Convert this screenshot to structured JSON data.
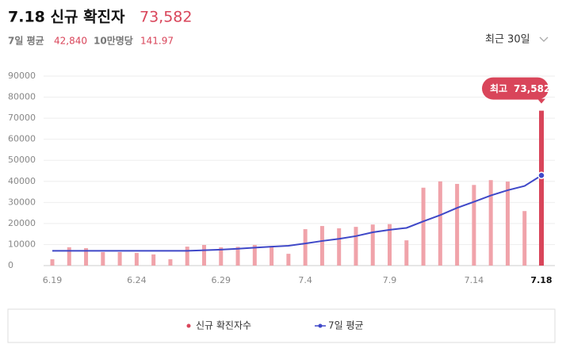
{
  "header": {
    "title": "7.18 신규 확진자",
    "count": "73,582",
    "avg_label": "7일 평균",
    "avg": "42,840",
    "per_label": "10만명당",
    "per": "141.97",
    "range": "최근 30일"
  },
  "chart_data": {
    "type": "bar-line",
    "categories": [
      "6.19",
      null,
      null,
      null,
      null,
      "6.24",
      null,
      null,
      null,
      null,
      "6.29",
      null,
      null,
      null,
      null,
      "7.4",
      null,
      null,
      null,
      null,
      "7.9",
      null,
      null,
      null,
      null,
      "7.14",
      null,
      null,
      null,
      "7.18"
    ],
    "series": [
      {
        "name": "신규 확진자수",
        "color": "#f0a3aa",
        "highlight_color": "#d9455a",
        "values": [
          3000,
          8700,
          8300,
          6400,
          6400,
          6000,
          5300,
          3000,
          9000,
          9800,
          8700,
          8900,
          9800,
          9300,
          5600,
          17300,
          18800,
          17700,
          18400,
          19500,
          19700,
          12000,
          37000,
          40000,
          38800,
          38300,
          40600,
          39900,
          25900,
          73582
        ],
        "value_labels": [
          null,
          null,
          null,
          null,
          null,
          null,
          null,
          null,
          null,
          null,
          null,
          null,
          null,
          null,
          null,
          null,
          null,
          null,
          null,
          null,
          null,
          null,
          null,
          null,
          null,
          null,
          null,
          null,
          null,
          "73,582"
        ]
      },
      {
        "name": "7일 평균",
        "color": "#3f48c8",
        "values": [
          7000,
          7000,
          7000,
          7000,
          7000,
          7000,
          7000,
          7000,
          7000,
          7300,
          7600,
          8000,
          8500,
          9000,
          9400,
          10500,
          11700,
          12700,
          14000,
          15800,
          17000,
          17900,
          21000,
          24000,
          27400,
          30300,
          33300,
          35800,
          37800,
          42840
        ]
      }
    ],
    "max_label": "최고",
    "ylim": [
      0,
      90000
    ],
    "yticks": [
      0,
      10000,
      20000,
      30000,
      40000,
      50000,
      60000,
      70000,
      80000,
      90000
    ],
    "grid": true
  }
}
